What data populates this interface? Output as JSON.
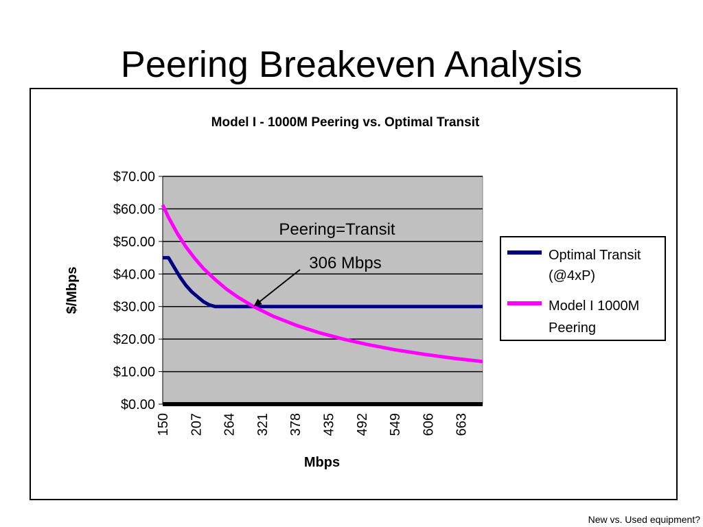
{
  "slide": {
    "title": "Peering Breakeven Analysis",
    "footnote": "New vs. Used equipment?"
  },
  "chart_data": {
    "type": "line",
    "title": "Model I - 1000M Peering vs. Optimal Transit",
    "xlabel": "Mbps",
    "ylabel": "$/Mbps",
    "categories": [
      "150",
      "207",
      "264",
      "321",
      "378",
      "435",
      "492",
      "549",
      "606",
      "663"
    ],
    "x_range": [
      150,
      700
    ],
    "ylim": [
      0,
      70
    ],
    "y_ticks": [
      0,
      10,
      20,
      30,
      40,
      50,
      60,
      70
    ],
    "y_tick_labels": [
      "$0.00",
      "$10.00",
      "$20.00",
      "$30.00",
      "$40.00",
      "$50.00",
      "$60.00",
      "$70.00"
    ],
    "grid": true,
    "plot_background": "#c0c0c0",
    "legend_position": "right",
    "series": [
      {
        "name": "Optimal Transit (@4xP)",
        "color": "#000080",
        "points": [
          [
            150,
            45
          ],
          [
            160,
            45
          ],
          [
            170,
            42
          ],
          [
            180,
            39
          ],
          [
            190,
            36.5
          ],
          [
            200,
            34.5
          ],
          [
            210,
            33
          ],
          [
            220,
            31.5
          ],
          [
            230,
            30.5
          ],
          [
            240,
            30
          ],
          [
            700,
            30
          ]
        ]
      },
      {
        "name": "Model I 1000M Peering",
        "color": "#ff00ff",
        "points": [
          [
            150,
            61.2
          ],
          [
            160,
            57.4
          ],
          [
            175,
            52.5
          ],
          [
            190,
            48.3
          ],
          [
            205,
            44.8
          ],
          [
            220,
            41.7
          ],
          [
            240,
            38.3
          ],
          [
            260,
            35.3
          ],
          [
            280,
            32.8
          ],
          [
            306,
            30
          ],
          [
            340,
            27
          ],
          [
            380,
            24.2
          ],
          [
            420,
            21.9
          ],
          [
            460,
            20
          ],
          [
            500,
            18.4
          ],
          [
            550,
            16.7
          ],
          [
            600,
            15.3
          ],
          [
            650,
            14.1
          ],
          [
            700,
            13.1
          ]
        ]
      }
    ],
    "annotation": {
      "line1": "Peering=Transit",
      "line2": "306 Mbps",
      "x": 306,
      "y": 30
    }
  }
}
